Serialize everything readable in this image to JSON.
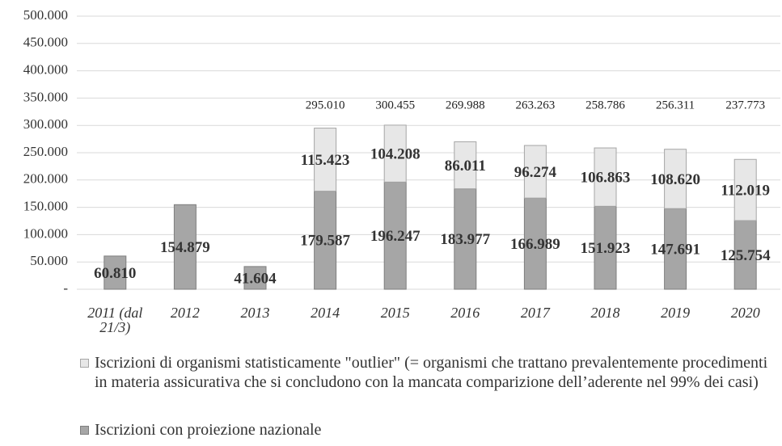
{
  "chart_data": {
    "type": "stacked_bar",
    "categories": [
      "2011 (dal 21/3)",
      "2012",
      "2013",
      "2014",
      "2015",
      "2016",
      "2017",
      "2018",
      "2019",
      "2020"
    ],
    "series": [
      {
        "name": "Iscrizioni con proiezione nazionale",
        "color": "#a6a6a6",
        "edge": "#7f7f7f",
        "values": [
          60810,
          154879,
          41604,
          179587,
          196247,
          183977,
          166989,
          151923,
          147691,
          125754
        ],
        "value_labels": [
          "60.810",
          "154.879",
          "41.604",
          "179.587",
          "196.247",
          "183.977",
          "166.989",
          "151.923",
          "147.691",
          "125.754"
        ]
      },
      {
        "name": "Iscrizioni di organismi statisticamente \"outlier\" (= organismi che trattano prevalentemente procedimenti in materia assicurativa che si concludono con la mancata comparizione dell’aderente nel 99% dei casi)",
        "color": "#e7e7e7",
        "edge": "#a6a6a6",
        "values": [
          null,
          null,
          null,
          115423,
          104208,
          86011,
          96274,
          106863,
          108620,
          112019
        ],
        "value_labels": [
          null,
          null,
          null,
          "115.423",
          "104.208",
          "86.011",
          "96.274",
          "106.863",
          "108.620",
          "112.019"
        ]
      }
    ],
    "totals": {
      "values": [
        null,
        null,
        null,
        295010,
        300455,
        269988,
        263263,
        258786,
        256311,
        237773
      ],
      "value_labels": [
        null,
        null,
        null,
        "295.010",
        "300.455",
        "269.988",
        "263.263",
        "258.786",
        "256.311",
        "237.773"
      ]
    },
    "ylim": [
      0,
      500000
    ],
    "yticks": [
      {
        "value": 0,
        "label": "-"
      },
      {
        "value": 50000,
        "label": "50.000"
      },
      {
        "value": 100000,
        "label": "100.000"
      },
      {
        "value": 150000,
        "label": "150.000"
      },
      {
        "value": 200000,
        "label": "200.000"
      },
      {
        "value": 250000,
        "label": "250.000"
      },
      {
        "value": 300000,
        "label": "300.000"
      },
      {
        "value": 350000,
        "label": "350.000"
      },
      {
        "value": 400000,
        "label": "400.000"
      },
      {
        "value": 450000,
        "label": "450.000"
      },
      {
        "value": 500000,
        "label": "500.000"
      }
    ],
    "grid": true,
    "legend": "bottom"
  }
}
